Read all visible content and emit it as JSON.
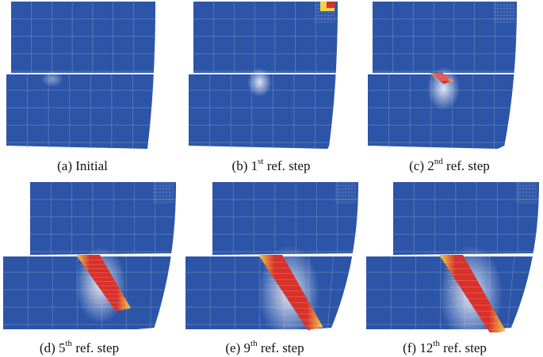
{
  "figure": {
    "panels": [
      {
        "id": "a",
        "caption": {
          "prefix": "(a) Initial",
          "sup": "",
          "suffix": ""
        },
        "refinement_step": 0,
        "crack_extent": 0.0
      },
      {
        "id": "b",
        "caption": {
          "prefix": "(b) 1",
          "sup": "st",
          "suffix": " ref. step"
        },
        "refinement_step": 1,
        "crack_extent": 0.05
      },
      {
        "id": "c",
        "caption": {
          "prefix": "(c) 2",
          "sup": "nd",
          "suffix": " ref. step"
        },
        "refinement_step": 2,
        "crack_extent": 0.25
      },
      {
        "id": "d",
        "caption": {
          "prefix": "(d) 5",
          "sup": "th",
          "suffix": " ref. step"
        },
        "refinement_step": 5,
        "crack_extent": 0.7
      },
      {
        "id": "e",
        "caption": {
          "prefix": "(e) 9",
          "sup": "th",
          "suffix": " ref. step"
        },
        "refinement_step": 9,
        "crack_extent": 0.95
      },
      {
        "id": "f",
        "caption": {
          "prefix": "(f) 12",
          "sup": "th",
          "suffix": " ref. step"
        },
        "refinement_step": 12,
        "crack_extent": 1.0
      }
    ],
    "colors": {
      "mesh_fill": "#2c55a8",
      "mesh_line": "#8ea4d2",
      "crack_core": "#d8302a",
      "crack_edge": "#f2d24a",
      "glow": "#e6ecf7"
    }
  }
}
